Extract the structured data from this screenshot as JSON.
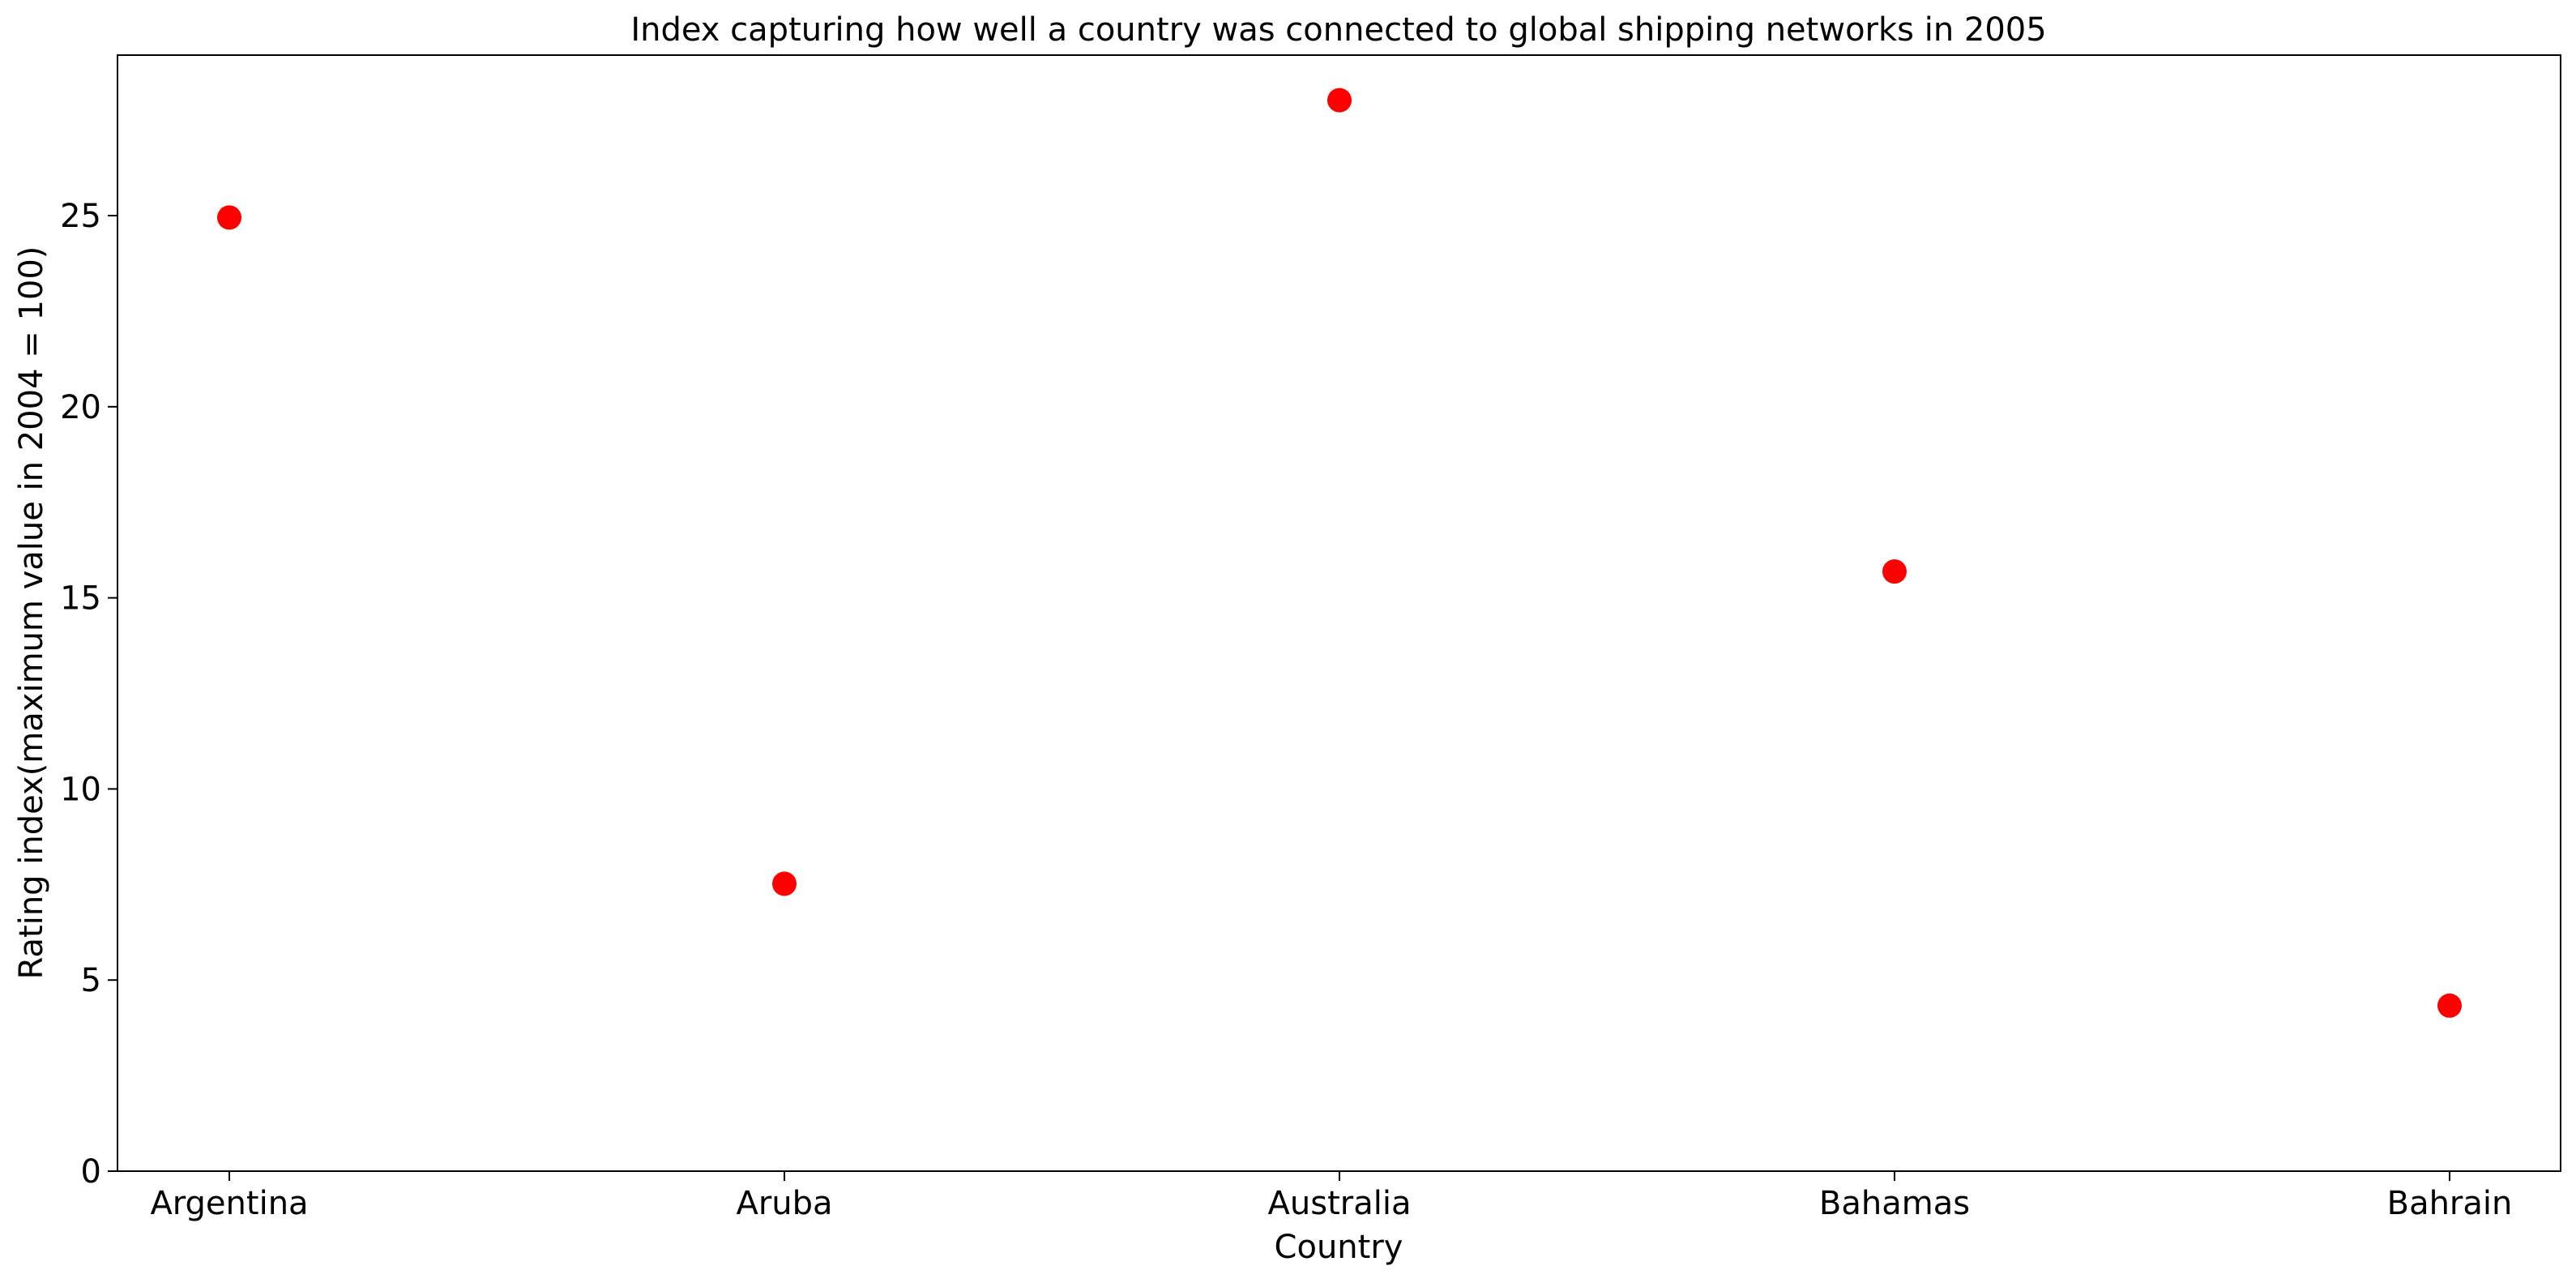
{
  "chart_data": {
    "type": "scatter",
    "title": "Index capturing how well a country was connected to global shipping networks in 2005",
    "xlabel": "Country",
    "ylabel": "Rating index(maximum value in 2004 = 100)",
    "categories": [
      "Argentina",
      "Aruba",
      "Australia",
      "Bahamas",
      "Bahrain"
    ],
    "series": [
      {
        "values": [
          24.95,
          7.52,
          28.02,
          15.69,
          4.33
        ],
        "color": "#ff0000"
      }
    ],
    "ylim": [
      0,
      29.2
    ],
    "yticks": [
      0,
      5,
      10,
      15,
      20,
      25
    ],
    "grid": false,
    "legend": false
  }
}
